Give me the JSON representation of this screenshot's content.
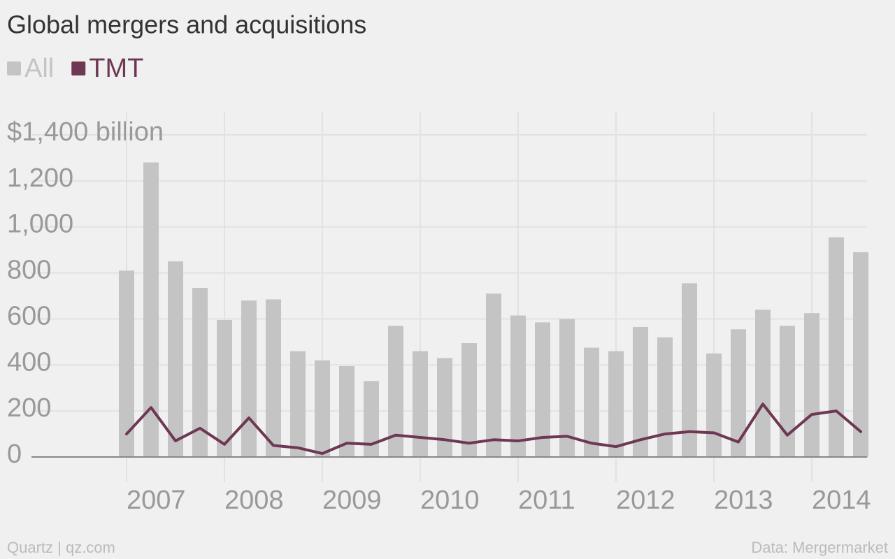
{
  "chart_data": {
    "type": "bar_line",
    "title": "Global mergers and acquisitions",
    "categories": [
      "2007",
      null,
      null,
      null,
      "2008",
      null,
      null,
      null,
      "2009",
      null,
      null,
      null,
      "2010",
      null,
      null,
      null,
      "2011",
      null,
      null,
      null,
      "2012",
      null,
      null,
      null,
      "2013",
      null,
      null,
      null,
      "2014",
      null,
      null
    ],
    "series": [
      {
        "name": "All",
        "color": "#c4c4c4",
        "type": "bar",
        "values": [
          810,
          1280,
          850,
          735,
          595,
          680,
          685,
          460,
          420,
          395,
          330,
          570,
          460,
          430,
          495,
          710,
          615,
          585,
          600,
          475,
          460,
          565,
          520,
          755,
          450,
          555,
          640,
          570,
          625,
          955,
          890
        ]
      },
      {
        "name": "TMT",
        "color": "#6e3753",
        "type": "line",
        "values": [
          100,
          215,
          70,
          125,
          55,
          170,
          50,
          40,
          15,
          60,
          55,
          95,
          85,
          75,
          60,
          75,
          70,
          85,
          90,
          60,
          45,
          75,
          100,
          110,
          105,
          65,
          230,
          95,
          185,
          200,
          110
        ]
      }
    ],
    "ylim": [
      0,
      1400
    ],
    "yticks": [
      0,
      200,
      400,
      600,
      800,
      {
        "value": 1000,
        "label": "1,000"
      },
      {
        "value": 1200,
        "label": "1,200"
      },
      {
        "value": 1400,
        "label": "$1,400 billion"
      }
    ],
    "grid": true,
    "source_left": "Quartz | qz.com",
    "source_right": "Data: Mergermarket"
  }
}
